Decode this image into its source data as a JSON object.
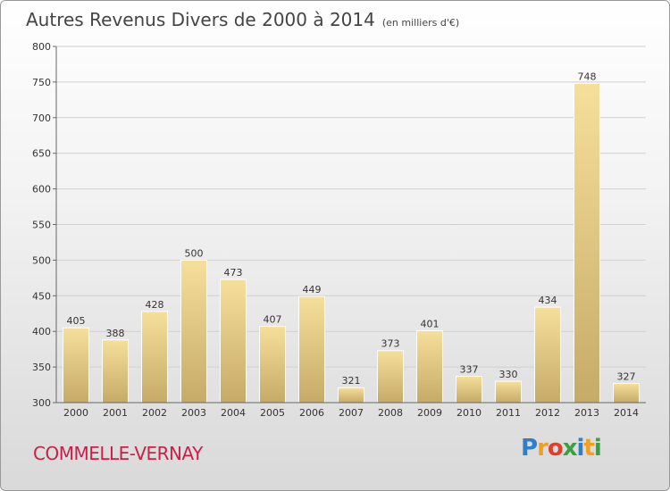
{
  "chart_data": {
    "type": "bar",
    "title": "Autres Revenus Divers de 2000 à 2014",
    "subtitle": "(en milliers d'€)",
    "categories": [
      "2000",
      "2001",
      "2002",
      "2003",
      "2004",
      "2005",
      "2006",
      "2007",
      "2008",
      "2009",
      "2010",
      "2011",
      "2012",
      "2013",
      "2014"
    ],
    "values": [
      405,
      388,
      428,
      500,
      473,
      407,
      449,
      321,
      373,
      401,
      337,
      330,
      434,
      748,
      327
    ],
    "ylim": [
      300,
      800
    ],
    "yticks": [
      300,
      350,
      400,
      450,
      500,
      550,
      600,
      650,
      700,
      750,
      800
    ],
    "grid": true,
    "bar_color": "#e8cf8a"
  },
  "footer": {
    "commune": "COMMELLE-VERNAY",
    "logo_letters": [
      "P",
      "r",
      "o",
      "x",
      "i",
      "t",
      "i"
    ],
    "logo_colors": [
      "#2e7fc8",
      "#f0a020",
      "#e0402a",
      "#3aa040",
      "#2e7fc8",
      "#f0a020",
      "#3aa040"
    ]
  }
}
